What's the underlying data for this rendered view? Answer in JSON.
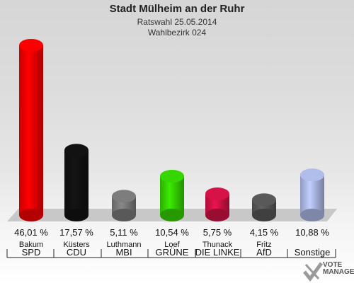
{
  "header": {
    "title": "Stadt Mülheim an der Ruhr",
    "subtitle1": "Ratswahl 25.05.2014",
    "subtitle2": "Wahlbezirk 024"
  },
  "logo": {
    "line1": "VOTE",
    "line2": "MANAGER"
  },
  "chart_data": {
    "type": "bar",
    "title": "Stadt Mülheim an der Ruhr",
    "subtitle": "Ratswahl 25.05.2014 / Wahlbezirk 024",
    "categories": [
      "SPD",
      "CDU",
      "MBI",
      "GRÜNE",
      "DIE LINKE",
      "AfD",
      "Sonstige"
    ],
    "candidates": [
      "Bakum",
      "Küsters",
      "Luthmann",
      "Loef",
      "Thunack",
      "Fritz",
      ""
    ],
    "values": [
      46.01,
      17.57,
      5.11,
      10.54,
      5.75,
      4.15,
      10.88
    ],
    "value_labels": [
      "46,01 %",
      "17,57 %",
      "5,11 %",
      "10,54 %",
      "5,75 %",
      "4,15 %",
      "10,88 %"
    ],
    "colors": [
      "#ee0000",
      "#111111",
      "#777777",
      "#33cc00",
      "#cc1144",
      "#555555",
      "#a9b4e0"
    ],
    "ylim": [
      0,
      46.01
    ]
  }
}
